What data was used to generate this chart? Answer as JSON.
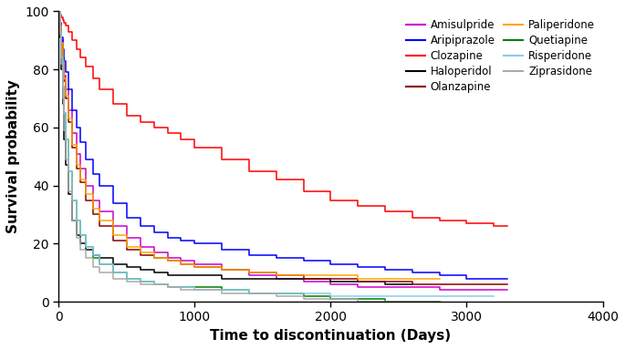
{
  "title": "",
  "xlabel": "Time to discontinuation (Days)",
  "ylabel": "Survival probability",
  "xlim": [
    0,
    4000
  ],
  "ylim": [
    0,
    100
  ],
  "xticks": [
    0,
    1000,
    2000,
    3000,
    4000
  ],
  "yticks": [
    0,
    20,
    40,
    60,
    80,
    100
  ],
  "drugs": [
    {
      "name": "Amisulpride",
      "color": "#CC00CC",
      "times": [
        0,
        10,
        20,
        30,
        40,
        50,
        70,
        100,
        130,
        160,
        200,
        250,
        300,
        400,
        500,
        600,
        700,
        800,
        900,
        1000,
        1200,
        1400,
        1600,
        1800,
        2000,
        2200,
        2400,
        2600,
        2800,
        3000,
        3200,
        3300
      ],
      "survival": [
        100,
        95,
        90,
        84,
        78,
        73,
        66,
        58,
        51,
        46,
        40,
        35,
        31,
        26,
        22,
        19,
        17,
        15,
        14,
        13,
        11,
        9,
        8,
        7,
        6,
        5,
        5,
        5,
        4,
        4,
        4,
        4
      ]
    },
    {
      "name": "Aripiprazole",
      "color": "#0000FF",
      "times": [
        0,
        10,
        20,
        30,
        40,
        50,
        70,
        100,
        130,
        160,
        200,
        250,
        300,
        400,
        500,
        600,
        700,
        800,
        900,
        1000,
        1200,
        1400,
        1600,
        1800,
        2000,
        2200,
        2400,
        2600,
        2800,
        3000,
        3200,
        3300
      ],
      "survival": [
        100,
        96,
        91,
        87,
        83,
        79,
        73,
        66,
        60,
        55,
        49,
        44,
        40,
        34,
        29,
        26,
        24,
        22,
        21,
        20,
        18,
        16,
        15,
        14,
        13,
        12,
        11,
        10,
        9,
        8,
        8,
        8
      ]
    },
    {
      "name": "Clozapine",
      "color": "#FF0000",
      "times": [
        0,
        10,
        20,
        30,
        40,
        50,
        70,
        100,
        130,
        160,
        200,
        250,
        300,
        400,
        500,
        600,
        700,
        800,
        900,
        1000,
        1200,
        1400,
        1600,
        1800,
        2000,
        2200,
        2400,
        2600,
        2800,
        3000,
        3200,
        3300
      ],
      "survival": [
        100,
        99,
        98,
        97,
        96,
        95,
        93,
        90,
        87,
        84,
        81,
        77,
        73,
        68,
        64,
        62,
        60,
        58,
        56,
        53,
        49,
        45,
        42,
        38,
        35,
        33,
        31,
        29,
        28,
        27,
        26,
        26
      ]
    },
    {
      "name": "Haloperidol",
      "color": "#000000",
      "times": [
        0,
        10,
        20,
        30,
        40,
        50,
        70,
        100,
        130,
        160,
        200,
        250,
        300,
        400,
        500,
        600,
        700,
        800,
        900,
        1000,
        1200,
        1400,
        1600,
        1800,
        2000,
        2200,
        2400,
        2600
      ],
      "survival": [
        100,
        91,
        80,
        68,
        56,
        47,
        37,
        28,
        23,
        20,
        18,
        16,
        15,
        13,
        12,
        11,
        10,
        9,
        9,
        9,
        8,
        8,
        8,
        8,
        7,
        7,
        6,
        6
      ]
    },
    {
      "name": "Olanzapine",
      "color": "#8B0000",
      "times": [
        0,
        10,
        20,
        30,
        40,
        50,
        70,
        100,
        130,
        160,
        200,
        250,
        300,
        400,
        500,
        600,
        700,
        800,
        900,
        1000,
        1200,
        1400,
        1600,
        1800,
        2000,
        2200,
        2400,
        2600,
        2800,
        3000,
        3200,
        3300
      ],
      "survival": [
        100,
        95,
        89,
        82,
        76,
        70,
        62,
        53,
        46,
        41,
        35,
        30,
        26,
        21,
        18,
        16,
        15,
        14,
        13,
        12,
        11,
        10,
        9,
        8,
        8,
        7,
        7,
        6,
        6,
        6,
        6,
        6
      ]
    },
    {
      "name": "Paliperidone",
      "color": "#FFA500",
      "times": [
        0,
        10,
        20,
        30,
        40,
        50,
        70,
        100,
        130,
        160,
        200,
        250,
        300,
        400,
        500,
        600,
        700,
        800,
        900,
        1000,
        1200,
        1400,
        1600,
        1800,
        2000,
        2200,
        2400,
        2600,
        2800
      ],
      "survival": [
        100,
        95,
        89,
        83,
        77,
        71,
        63,
        54,
        47,
        42,
        37,
        32,
        28,
        23,
        19,
        17,
        15,
        14,
        13,
        12,
        11,
        10,
        9,
        9,
        9,
        8,
        8,
        8,
        8
      ]
    },
    {
      "name": "Quetiapine",
      "color": "#008000",
      "times": [
        0,
        10,
        20,
        30,
        40,
        50,
        70,
        100,
        130,
        160,
        200,
        250,
        300,
        400,
        500,
        600,
        700,
        800,
        900,
        1000,
        1200,
        1400,
        1600,
        1800,
        2000,
        2200,
        2400,
        2600,
        2800
      ],
      "survival": [
        100,
        93,
        84,
        74,
        65,
        56,
        45,
        35,
        28,
        23,
        19,
        15,
        13,
        10,
        8,
        7,
        6,
        5,
        5,
        5,
        4,
        3,
        3,
        2,
        1,
        1,
        0,
        0,
        0
      ]
    },
    {
      "name": "Risperidone",
      "color": "#87CEEB",
      "times": [
        0,
        10,
        20,
        30,
        40,
        50,
        70,
        100,
        130,
        160,
        200,
        250,
        300,
        400,
        500,
        600,
        700,
        800,
        900,
        1000,
        1200,
        1400,
        1600,
        1800,
        2000,
        2200,
        2400,
        2600,
        2800,
        3000,
        3200
      ],
      "survival": [
        100,
        93,
        84,
        74,
        65,
        56,
        45,
        35,
        28,
        23,
        19,
        16,
        13,
        10,
        8,
        7,
        6,
        5,
        5,
        4,
        4,
        3,
        3,
        3,
        2,
        2,
        2,
        2,
        2,
        2,
        2
      ]
    },
    {
      "name": "Ziprasidone",
      "color": "#AAAAAA",
      "times": [
        0,
        10,
        20,
        30,
        40,
        50,
        70,
        100,
        130,
        160,
        200,
        250,
        300,
        400,
        500,
        600,
        700,
        800,
        900,
        1000,
        1200,
        1400,
        1600,
        1800,
        2000,
        2200,
        2400,
        2600,
        2800
      ],
      "survival": [
        100,
        92,
        82,
        70,
        59,
        49,
        38,
        28,
        22,
        18,
        15,
        12,
        10,
        8,
        7,
        6,
        6,
        5,
        4,
        4,
        3,
        3,
        2,
        1,
        1,
        0,
        0,
        0,
        0
      ]
    }
  ],
  "legend_ncol": 2,
  "legend_loc": "upper right",
  "figsize": [
    6.85,
    3.83
  ],
  "dpi": 100
}
